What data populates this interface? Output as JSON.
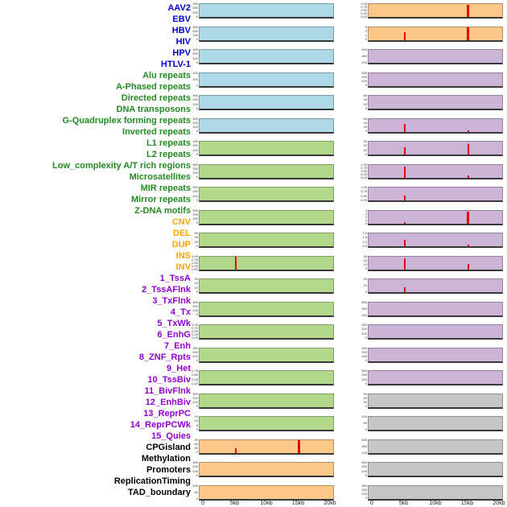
{
  "colors": {
    "label_virus": "#0000cd",
    "label_repeat": "#228b22",
    "label_sv": "#ffa500",
    "label_chromhmm": "#9400d3",
    "label_other": "#000000",
    "panel_blue": "#add8e6",
    "panel_green": "#b4d88b",
    "panel_orange": "#fcc88a",
    "panel_purple": "#cbb4d5",
    "panel_gray": "#c6c6c6",
    "spike_red": "#e80000",
    "baseline": "#383838"
  },
  "row_labels": [
    {
      "text": "AAV2",
      "group": "virus"
    },
    {
      "text": "EBV",
      "group": "virus"
    },
    {
      "text": "HBV",
      "group": "virus"
    },
    {
      "text": "HIV",
      "group": "virus"
    },
    {
      "text": "HPV",
      "group": "virus"
    },
    {
      "text": "HTLV-1",
      "group": "virus"
    },
    {
      "text": "Alu repeats",
      "group": "repeat"
    },
    {
      "text": "A-Phased repeats",
      "group": "repeat"
    },
    {
      "text": "Directed repeats",
      "group": "repeat"
    },
    {
      "text": "DNA transposons",
      "group": "repeat"
    },
    {
      "text": "G-Quadruplex forming repeats",
      "group": "repeat"
    },
    {
      "text": "Inverted repeats",
      "group": "repeat"
    },
    {
      "text": "L1 repeats",
      "group": "repeat"
    },
    {
      "text": "L2 repeats",
      "group": "repeat"
    },
    {
      "text": "Low_complexity A/T rich regions",
      "group": "repeat"
    },
    {
      "text": "Microsatellites",
      "group": "repeat"
    },
    {
      "text": "MIR repeats",
      "group": "repeat"
    },
    {
      "text": "Mirror repeats",
      "group": "repeat"
    },
    {
      "text": "Z-DNA motifs",
      "group": "repeat"
    },
    {
      "text": "CNV",
      "group": "sv"
    },
    {
      "text": "DEL",
      "group": "sv"
    },
    {
      "text": "DUP",
      "group": "sv"
    },
    {
      "text": "INS",
      "group": "sv"
    },
    {
      "text": "INV",
      "group": "sv"
    },
    {
      "text": "1_TssA",
      "group": "chromhmm"
    },
    {
      "text": "2_TssAFlnk",
      "group": "chromhmm"
    },
    {
      "text": "3_TxFlnk",
      "group": "chromhmm"
    },
    {
      "text": "4_Tx",
      "group": "chromhmm"
    },
    {
      "text": "5_TxWk",
      "group": "chromhmm"
    },
    {
      "text": "6_EnhG",
      "group": "chromhmm"
    },
    {
      "text": "7_Enh",
      "group": "chromhmm"
    },
    {
      "text": "8_ZNF_Rpts",
      "group": "chromhmm"
    },
    {
      "text": "9_Het",
      "group": "chromhmm"
    },
    {
      "text": "10_TssBiv",
      "group": "chromhmm"
    },
    {
      "text": "11_BivFlnk",
      "group": "chromhmm"
    },
    {
      "text": "12_EnhBiv",
      "group": "chromhmm"
    },
    {
      "text": "13_ReprPC",
      "group": "chromhmm"
    },
    {
      "text": "14_ReprPCWk",
      "group": "chromhmm"
    },
    {
      "text": "15_Quies",
      "group": "chromhmm"
    },
    {
      "text": "CPGisland",
      "group": "other"
    },
    {
      "text": "Methylation",
      "group": "other"
    },
    {
      "text": "Promoters",
      "group": "other"
    },
    {
      "text": "ReplicationTiming",
      "group": "other"
    },
    {
      "text": "TAD_boundary",
      "group": "other"
    }
  ],
  "chart_data": {
    "type": "bar",
    "title": "",
    "xlabel": "",
    "x_range_kb": [
      0,
      20
    ],
    "x_ticks": [
      "0",
      "5kb",
      "10kb",
      "15kb",
      "20kb"
    ],
    "spike_positions_kb": [
      5,
      15
    ],
    "columns": [
      {
        "name": "tracks-left",
        "panels": [
          {
            "feature": "AAV2",
            "bg": "blue",
            "yticks": [
              "300",
              "200",
              "100",
              "0"
            ],
            "spikes": []
          },
          {
            "feature": "EBV",
            "bg": "blue",
            "yticks": [
              "300",
              "200",
              "100",
              "0"
            ],
            "spikes": []
          },
          {
            "feature": "HBV",
            "bg": "blue",
            "yticks": [
              "300",
              "200",
              "100",
              "0"
            ],
            "spikes": []
          },
          {
            "feature": "HIV",
            "bg": "blue",
            "yticks": [
              "400",
              "200",
              "0"
            ],
            "spikes": []
          },
          {
            "feature": "HPV",
            "bg": "blue",
            "yticks": [
              "300",
              "200",
              "100",
              "0"
            ],
            "spikes": []
          },
          {
            "feature": "HTLV-1",
            "bg": "blue",
            "yticks": [
              "300",
              "200",
              "100",
              "0"
            ],
            "spikes": []
          },
          {
            "feature": "Alu repeats",
            "bg": "green",
            "yticks": [
              "300",
              "200",
              "100",
              "0"
            ],
            "spikes": []
          },
          {
            "feature": "A-Phased repeats",
            "bg": "green",
            "yticks": [
              "300",
              "200",
              "100",
              "0"
            ],
            "spikes": []
          },
          {
            "feature": "Directed repeats",
            "bg": "green",
            "yticks": [
              "300",
              "200",
              "100",
              "0"
            ],
            "spikes": []
          },
          {
            "feature": "DNA transposons",
            "bg": "green",
            "yticks": [
              "300",
              "200",
              "100",
              "0"
            ],
            "spikes": []
          },
          {
            "feature": "G-Quadruplex forming repeats",
            "bg": "green",
            "yticks": [
              "60",
              "40",
              "20",
              "0"
            ],
            "spikes": []
          },
          {
            "feature": "Inverted repeats",
            "bg": "green",
            "yticks": [
              "1.00",
              "0.75",
              "0.50",
              "0.25",
              "0.00"
            ],
            "spikes": [
              {
                "x_kb": 5,
                "h": 1.0,
                "w": 2
              }
            ]
          },
          {
            "feature": "L1 repeats",
            "bg": "green",
            "yticks": [
              "30",
              "20",
              "10",
              "0"
            ],
            "spikes": []
          },
          {
            "feature": "L2 repeats",
            "bg": "green",
            "yticks": [
              "300",
              "200",
              "100",
              "0"
            ],
            "spikes": []
          },
          {
            "feature": "Low_complexity A/T rich regions",
            "bg": "green",
            "yticks": [
              "1.00",
              "0.75",
              "0.50",
              "0.25",
              "0.00"
            ],
            "spikes": []
          },
          {
            "feature": "Microsatellites",
            "bg": "green",
            "yticks": [
              "300",
              "200",
              "100",
              "0"
            ],
            "spikes": []
          },
          {
            "feature": "MIR repeats",
            "bg": "green",
            "yticks": [
              "0.75",
              "0.50",
              "0.25",
              "0.00"
            ],
            "spikes": []
          },
          {
            "feature": "Mirror repeats",
            "bg": "green",
            "yticks": [
              "300",
              "200",
              "100",
              "0"
            ],
            "spikes": []
          },
          {
            "feature": "Z-DNA motifs",
            "bg": "green",
            "yticks": [
              "15",
              "10",
              "5",
              "0"
            ],
            "spikes": []
          },
          {
            "feature": "CNV",
            "bg": "orange",
            "yticks": [
              "90",
              "60",
              "30",
              "0"
            ],
            "spikes": [
              {
                "x_kb": 5,
                "h": 0.35,
                "w": 2
              },
              {
                "x_kb": 15,
                "h": 1.0,
                "w": 3
              }
            ]
          },
          {
            "feature": "DEL",
            "bg": "orange",
            "yticks": [
              "300",
              "200",
              "100",
              "0"
            ],
            "spikes": []
          },
          {
            "feature": "DUP",
            "bg": "orange",
            "yticks": [
              "100",
              "50",
              "0"
            ],
            "spikes": []
          }
        ]
      },
      {
        "name": "tracks-right",
        "panels": [
          {
            "feature": "INS",
            "bg": "orange",
            "yticks": [
              "1.00",
              "0.75",
              "0.50",
              "0.25",
              "0.00"
            ],
            "spikes": [
              {
                "x_kb": 15,
                "h": 0.95,
                "w": 3
              }
            ]
          },
          {
            "feature": "INV",
            "bg": "orange",
            "yticks": [
              "3",
              "2",
              "1",
              "0"
            ],
            "spikes": [
              {
                "x_kb": 5,
                "h": 0.6,
                "w": 2
              },
              {
                "x_kb": 15,
                "h": 1.0,
                "w": 3
              }
            ]
          },
          {
            "feature": "1_TssA",
            "bg": "purple",
            "yticks": [
              "500",
              "300",
              "100"
            ],
            "spikes": []
          },
          {
            "feature": "2_TssAFlnk",
            "bg": "purple",
            "yticks": [
              "300",
              "200",
              "100",
              "0"
            ],
            "spikes": []
          },
          {
            "feature": "3_TxFlnk",
            "bg": "purple",
            "yticks": [
              "60",
              "40",
              "20",
              "0"
            ],
            "spikes": []
          },
          {
            "feature": "4_Tx",
            "bg": "purple",
            "yticks": [
              "60",
              "40",
              "20",
              "0"
            ],
            "spikes": [
              {
                "x_kb": 5,
                "h": 0.6,
                "w": 2
              },
              {
                "x_kb": 15,
                "h": 0.12,
                "w": 2
              }
            ]
          },
          {
            "feature": "5_TxWk",
            "bg": "purple",
            "yticks": [
              "30",
              "20",
              "10",
              "0"
            ],
            "spikes": [
              {
                "x_kb": 5,
                "h": 0.55,
                "w": 2
              },
              {
                "x_kb": 15,
                "h": 0.8,
                "w": 2
              }
            ]
          },
          {
            "feature": "6_EnhG",
            "bg": "purple",
            "yticks": [
              "1.00",
              "0.75",
              "0.50",
              "0.25",
              "0.00"
            ],
            "spikes": [
              {
                "x_kb": 5,
                "h": 0.85,
                "w": 2
              },
              {
                "x_kb": 15,
                "h": 0.2,
                "w": 2
              }
            ]
          },
          {
            "feature": "7_Enh",
            "bg": "purple",
            "yticks": [
              "1.00",
              "0.75",
              "0.50",
              "0.25"
            ],
            "spikes": [
              {
                "x_kb": 5,
                "h": 0.35,
                "w": 2
              }
            ]
          },
          {
            "feature": "8_ZNF_Rpts",
            "bg": "purple",
            "yticks": [
              "4",
              "3",
              "2",
              "1",
              "0"
            ],
            "spikes": [
              {
                "x_kb": 5,
                "h": 0.12,
                "w": 2
              },
              {
                "x_kb": 15,
                "h": 0.95,
                "w": 3
              }
            ]
          },
          {
            "feature": "9_Het",
            "bg": "purple",
            "yticks": [
              "2.0",
              "1.5",
              "1.0",
              "0.5"
            ],
            "spikes": [
              {
                "x_kb": 5,
                "h": 0.5,
                "w": 2
              },
              {
                "x_kb": 15,
                "h": 0.15,
                "w": 2
              }
            ]
          },
          {
            "feature": "10_TssBiv",
            "bg": "purple",
            "yticks": [
              "30",
              "20",
              "10",
              "0"
            ],
            "spikes": [
              {
                "x_kb": 5,
                "h": 0.85,
                "w": 2
              },
              {
                "x_kb": 15,
                "h": 0.45,
                "w": 2
              }
            ]
          },
          {
            "feature": "11_BivFlnk",
            "bg": "purple",
            "yticks": [
              "20",
              "10",
              "0"
            ],
            "spikes": [
              {
                "x_kb": 5,
                "h": 0.35,
                "w": 2
              }
            ]
          },
          {
            "feature": "12_EnhBiv",
            "bg": "purple",
            "yticks": [
              "500",
              "300",
              "100"
            ],
            "spikes": []
          },
          {
            "feature": "13_ReprPC",
            "bg": "purple",
            "yticks": [
              "300",
              "200",
              "100",
              "0"
            ],
            "spikes": []
          },
          {
            "feature": "14_ReprPCWk",
            "bg": "purple",
            "yticks": [
              "300",
              "200",
              "100",
              "0"
            ],
            "spikes": []
          },
          {
            "feature": "15_Quies",
            "bg": "purple",
            "yticks": [
              "300",
              "200",
              "100",
              "0"
            ],
            "spikes": []
          },
          {
            "feature": "CPGisland",
            "bg": "gray",
            "yticks": [
              "90",
              "60",
              "30",
              "0"
            ],
            "spikes": []
          },
          {
            "feature": "Methylation",
            "bg": "gray",
            "yticks": [
              "100",
              "50",
              "0"
            ],
            "spikes": []
          },
          {
            "feature": "Promoters",
            "bg": "gray",
            "yticks": [
              "500",
              "300",
              "100"
            ],
            "spikes": []
          },
          {
            "feature": "ReplicationTiming",
            "bg": "gray",
            "yticks": [
              "300",
              "200",
              "100",
              "0"
            ],
            "spikes": []
          },
          {
            "feature": "TAD_boundary",
            "bg": "gray",
            "yticks": [
              "300",
              "200",
              "100",
              "0"
            ],
            "spikes": []
          }
        ]
      }
    ]
  }
}
